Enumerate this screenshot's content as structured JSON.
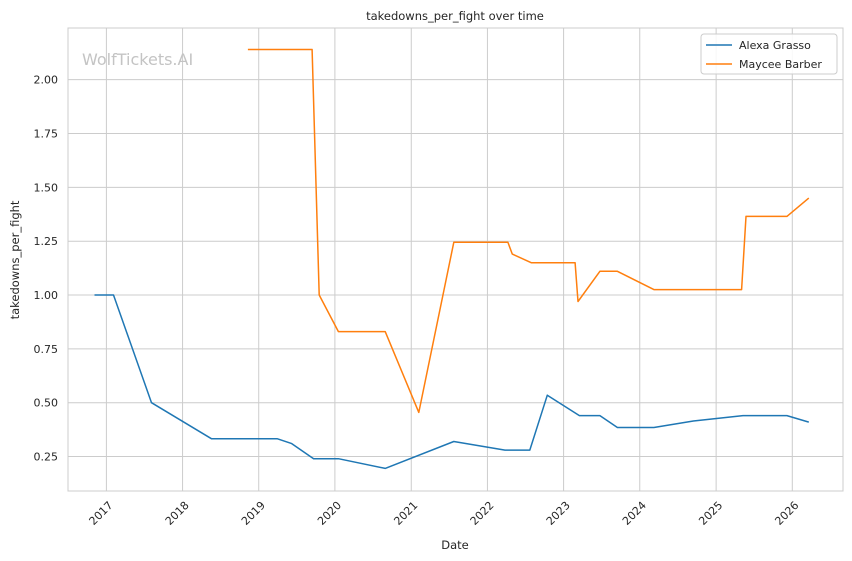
{
  "chart_data": {
    "type": "line",
    "title": "takedowns_per_fight over time",
    "xlabel": "Date",
    "ylabel": "takedowns_per_fight",
    "watermark": "WolfTickets.AI",
    "xlim": [
      "2016-07-01",
      "2026-09-01"
    ],
    "ylim": [
      0.09,
      2.24
    ],
    "x_ticks": [
      "2017",
      "2018",
      "2019",
      "2020",
      "2021",
      "2022",
      "2023",
      "2024",
      "2025",
      "2026"
    ],
    "y_ticks": [
      "0.25",
      "0.50",
      "0.75",
      "1.00",
      "1.25",
      "1.50",
      "1.75",
      "2.00"
    ],
    "grid": true,
    "legend_position": "top-right",
    "series": [
      {
        "name": "Alexa Grasso",
        "color": "#1f77b4",
        "points": [
          [
            "2016-11-05",
            1.0
          ],
          [
            "2017-02-04",
            1.0
          ],
          [
            "2017-08-05",
            0.5
          ],
          [
            "2018-05-19",
            0.333
          ],
          [
            "2019-03-30",
            0.333
          ],
          [
            "2019-06-08",
            0.31
          ],
          [
            "2019-09-21",
            0.24
          ],
          [
            "2020-01-18",
            0.24
          ],
          [
            "2020-08-29",
            0.195
          ],
          [
            "2021-07-24",
            0.32
          ],
          [
            "2022-03-26",
            0.28
          ],
          [
            "2022-07-23",
            0.28
          ],
          [
            "2022-10-15",
            0.535
          ],
          [
            "2023-03-18",
            0.44
          ],
          [
            "2023-06-24",
            0.44
          ],
          [
            "2023-09-16",
            0.385
          ],
          [
            "2024-03-09",
            0.385
          ],
          [
            "2024-09-14",
            0.415
          ],
          [
            "2025-05-10",
            0.44
          ],
          [
            "2025-12-06",
            0.44
          ],
          [
            "2026-03-21",
            0.41
          ]
        ]
      },
      {
        "name": "Maycee Barber",
        "color": "#ff7f0e",
        "points": [
          [
            "2018-11-10",
            2.14
          ],
          [
            "2019-09-14",
            2.14
          ],
          [
            "2019-10-18",
            1.0
          ],
          [
            "2020-01-18",
            0.83
          ],
          [
            "2020-08-29",
            0.83
          ],
          [
            "2021-02-06",
            0.455
          ],
          [
            "2021-07-24",
            1.245
          ],
          [
            "2022-04-09",
            1.245
          ],
          [
            "2022-04-30",
            1.19
          ],
          [
            "2022-07-30",
            1.15
          ],
          [
            "2023-02-25",
            1.15
          ],
          [
            "2023-03-11",
            0.97
          ],
          [
            "2023-06-24",
            1.11
          ],
          [
            "2023-09-16",
            1.11
          ],
          [
            "2024-03-09",
            1.025
          ],
          [
            "2025-05-03",
            1.025
          ],
          [
            "2025-05-24",
            1.365
          ],
          [
            "2025-12-06",
            1.365
          ],
          [
            "2026-03-21",
            1.45
          ]
        ]
      }
    ]
  }
}
